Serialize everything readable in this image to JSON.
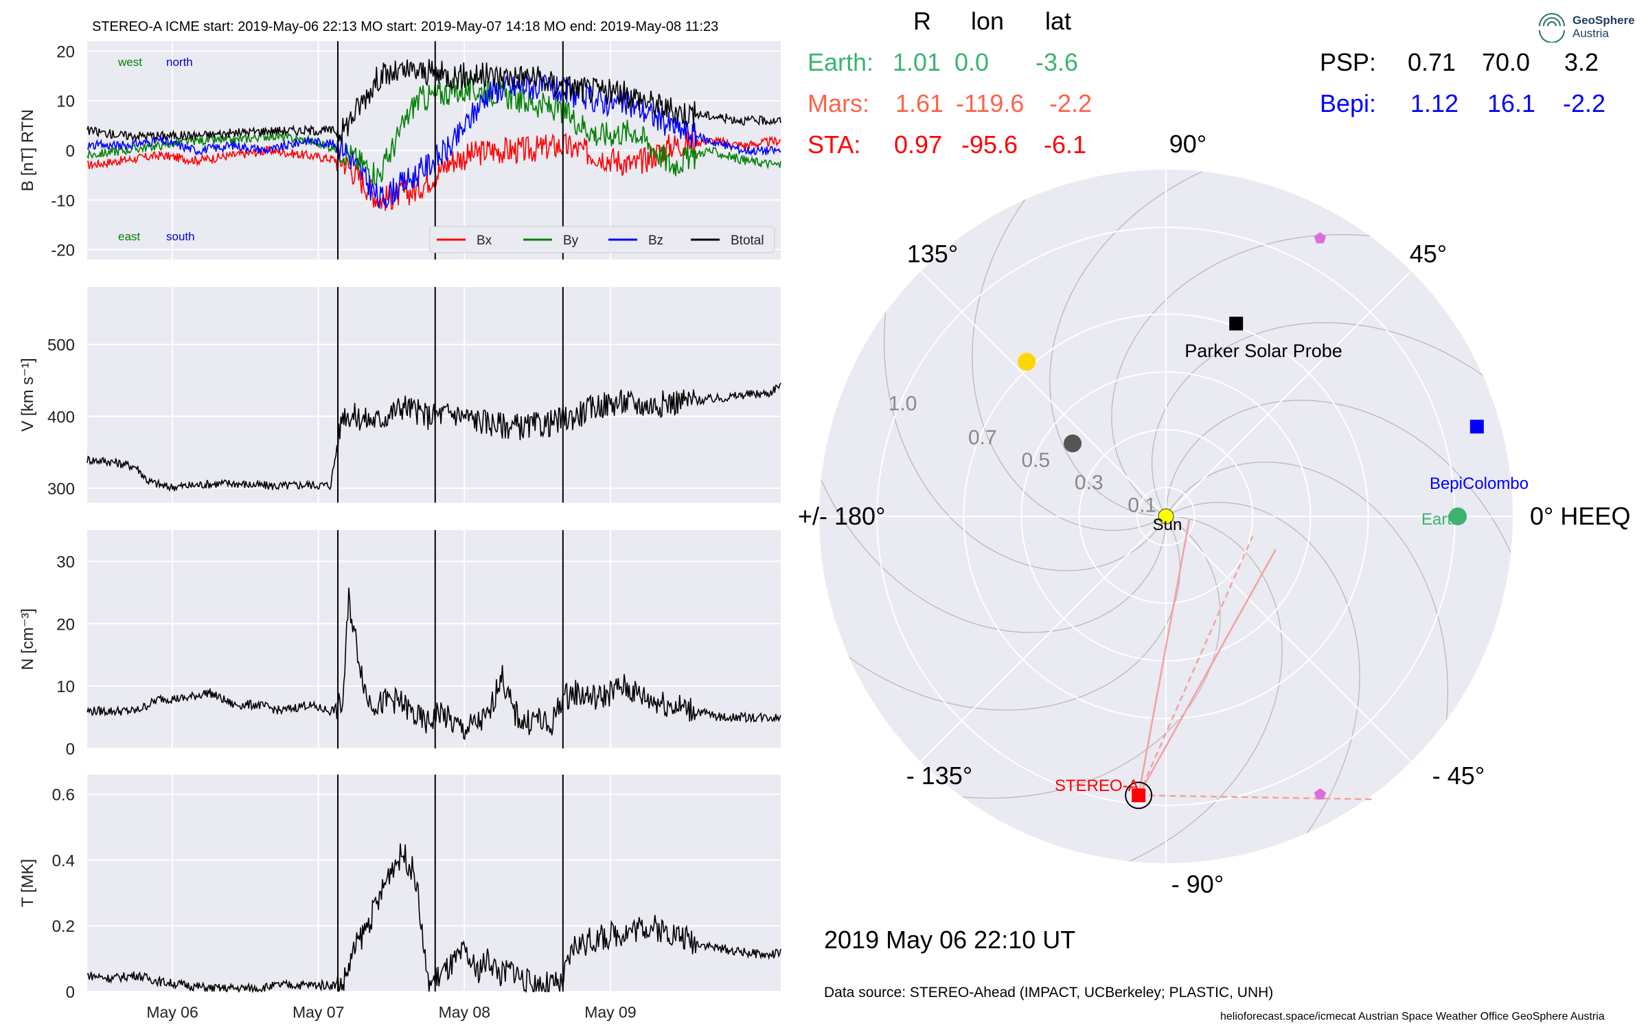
{
  "header": {
    "banner": "STEREO-A    ICME start: 2019-May-06 22:13   MO start: 2019-May-07 14:18   MO end: 2019-May-08 11:23"
  },
  "logo": {
    "line1": "GeoSphere",
    "line2": "Austria"
  },
  "positions": {
    "columns": [
      "R",
      "lon",
      "lat"
    ],
    "rows": [
      {
        "name": "Earth:",
        "r": "1.01",
        "lon": "0.0",
        "lat": "-3.6",
        "color": "#3cb371"
      },
      {
        "name": "Mars:",
        "r": "1.61",
        "lon": "-119.6",
        "lat": "-2.2",
        "color": "#ff6347"
      },
      {
        "name": "STA:",
        "r": "0.97",
        "lon": "-95.6",
        "lat": "-6.1",
        "color": "#ff0000"
      },
      {
        "name": "PSP:",
        "r": "0.71",
        "lon": "70.0",
        "lat": "3.2",
        "color": "#000000"
      },
      {
        "name": "Bepi:",
        "r": "1.12",
        "lon": "16.1",
        "lat": "-2.2",
        "color": "#0000ff"
      }
    ]
  },
  "footer": {
    "date": "2019 May 06  22:10 UT",
    "source": "Data source: STEREO-Ahead (IMPACT, UCBerkeley; PLASTIC, UNH)",
    "credits": "helioforecast.space/icmecat   Austrian Space Weather Office   GeoSphere Austria"
  },
  "chart_data": [
    {
      "type": "line",
      "ylabel": "B [nT] RTN",
      "ylim": [
        -22,
        22
      ],
      "yticks": [
        -20,
        -10,
        0,
        10,
        20
      ],
      "corner_labels": {
        "west": "west",
        "north": "north",
        "east": "east",
        "south": "south"
      },
      "legend": {
        "placement": "bottom-right",
        "entries": [
          "Bx",
          "By",
          "Bz",
          "Btotal"
        ]
      },
      "series": [
        {
          "name": "Bx",
          "color": "#ff0000",
          "x": [
            0,
            6,
            12,
            18,
            24,
            30,
            36,
            42,
            48,
            54,
            60,
            66,
            72,
            78,
            84,
            90,
            96,
            102,
            108,
            114
          ],
          "y": [
            -3,
            -2,
            -1,
            -2,
            -1,
            0,
            -1,
            -2,
            -10,
            -8,
            -2,
            0,
            0,
            1,
            -1,
            -3,
            1,
            2,
            1,
            2
          ]
        },
        {
          "name": "By",
          "color": "#008000",
          "x": [
            0,
            6,
            12,
            18,
            24,
            30,
            36,
            42,
            48,
            54,
            60,
            66,
            72,
            78,
            84,
            90,
            96,
            102,
            108,
            114
          ],
          "y": [
            -1,
            0,
            1,
            2,
            2,
            3,
            2,
            0,
            -5,
            10,
            12,
            12,
            10,
            8,
            3,
            4,
            -3,
            0,
            -2,
            -3
          ]
        },
        {
          "name": "Bz",
          "color": "#0000ff",
          "x": [
            0,
            6,
            12,
            18,
            24,
            30,
            36,
            42,
            48,
            54,
            60,
            66,
            72,
            78,
            84,
            90,
            96,
            102,
            108,
            114
          ],
          "y": [
            1,
            1,
            2,
            0,
            1,
            0,
            2,
            1,
            -10,
            -5,
            1,
            12,
            13,
            12,
            10,
            9,
            5,
            2,
            0,
            0
          ]
        },
        {
          "name": "Btotal",
          "color": "#000000",
          "x": [
            0,
            6,
            12,
            18,
            24,
            30,
            36,
            42,
            48,
            54,
            60,
            66,
            72,
            78,
            84,
            90,
            96,
            102,
            108,
            114
          ],
          "y": [
            4,
            3,
            3,
            3,
            3.5,
            4,
            4,
            4,
            15,
            16,
            15,
            15,
            15,
            13,
            12,
            11,
            8,
            7,
            6,
            6
          ]
        }
      ],
      "xlim": [
        0,
        114
      ]
    },
    {
      "type": "line",
      "ylabel": "V [km s⁻¹]",
      "ylim": [
        280,
        580
      ],
      "yticks": [
        300,
        400,
        500
      ],
      "series": [
        {
          "name": "",
          "color": "#000000",
          "x": [
            0,
            4,
            8,
            10,
            13,
            16,
            20,
            24,
            28,
            32,
            36,
            40,
            42,
            44,
            46,
            48,
            52,
            56,
            60,
            64,
            68,
            72,
            76,
            80,
            84,
            88,
            92,
            96,
            100,
            104,
            108,
            112,
            114
          ],
          "y": [
            340,
            337,
            330,
            310,
            302,
            303,
            306,
            307,
            304,
            303,
            305,
            304,
            405,
            400,
            395,
            395,
            415,
            400,
            405,
            395,
            388,
            385,
            390,
            400,
            415,
            420,
            415,
            420,
            422,
            425,
            430,
            432,
            445
          ]
        }
      ],
      "xlim": [
        0,
        114
      ]
    },
    {
      "type": "line",
      "ylabel": "N [cm⁻³]",
      "ylim": [
        0,
        35
      ],
      "yticks": [
        0,
        10,
        20,
        30
      ],
      "series": [
        {
          "name": "",
          "color": "#000000",
          "x": [
            0,
            4,
            8,
            12,
            16,
            20,
            24,
            28,
            32,
            36,
            40,
            42,
            43,
            44,
            46,
            48,
            50,
            52,
            54,
            56,
            58,
            60,
            62,
            64,
            66,
            68,
            70,
            72,
            74,
            76,
            78,
            80,
            84,
            88,
            92,
            96,
            100,
            104,
            108,
            112,
            114
          ],
          "y": [
            6,
            6,
            6,
            8,
            8,
            9,
            7,
            7,
            6,
            7,
            6,
            7,
            24,
            18,
            8,
            7,
            8,
            7,
            5,
            4,
            6,
            4,
            3,
            4,
            5,
            12,
            6,
            4,
            5,
            3,
            8,
            9,
            8,
            10,
            8,
            7,
            6,
            5,
            5,
            5,
            5
          ]
        }
      ],
      "xlim": [
        0,
        114
      ]
    },
    {
      "type": "line",
      "ylabel": "T [MK]",
      "ylim": [
        0,
        0.66
      ],
      "yticks": [
        0.0,
        0.2,
        0.4,
        0.6
      ],
      "x_ticks": {
        "labels": [
          "May 06",
          "May 07",
          "May 08",
          "May 09"
        ],
        "values": [
          14,
          38,
          62,
          86
        ]
      },
      "series": [
        {
          "name": "",
          "color": "#000000",
          "x": [
            0,
            4,
            8,
            12,
            16,
            20,
            24,
            28,
            32,
            36,
            40,
            42,
            44,
            46,
            48,
            50,
            52,
            54,
            56,
            58,
            60,
            62,
            64,
            66,
            68,
            70,
            72,
            74,
            76,
            78,
            80,
            84,
            88,
            92,
            96,
            100,
            104,
            108,
            112,
            114
          ],
          "y": [
            0.05,
            0.04,
            0.05,
            0.03,
            0.02,
            0.01,
            0.01,
            0.01,
            0.02,
            0.02,
            0.02,
            0.02,
            0.13,
            0.2,
            0.28,
            0.38,
            0.42,
            0.35,
            0.02,
            0.05,
            0.08,
            0.12,
            0.06,
            0.1,
            0.05,
            0.07,
            0.03,
            0.02,
            0.02,
            0.02,
            0.14,
            0.16,
            0.18,
            0.2,
            0.18,
            0.15,
            0.13,
            0.12,
            0.11,
            0.12
          ]
        }
      ],
      "xlim": [
        0,
        114
      ]
    },
    {
      "type": "scatter",
      "subtype": "polar",
      "r_ticks": [
        "0.1",
        "0.3",
        "0.5",
        "0.7",
        "1.0"
      ],
      "r_values": [
        0.1,
        0.3,
        0.5,
        0.7,
        1.0
      ],
      "rmax": 1.2,
      "angle_labels": [
        "0° HEEQ",
        "45°",
        "90°",
        "135°",
        "+/- 180°",
        "- 135°",
        "- 90°",
        "- 45°"
      ],
      "bodies": [
        {
          "name": "Sun",
          "r": 0,
          "lon": 0,
          "color": "#ffff00",
          "shape": "circle"
        },
        {
          "name": "Earth",
          "r": 1.01,
          "lon": 0.0,
          "color": "#3cb371",
          "shape": "circle"
        },
        {
          "name": "BepiColombo",
          "r": 1.12,
          "lon": 16.1,
          "color": "#0000ff",
          "shape": "square"
        },
        {
          "name": "Parker Solar Probe",
          "r": 0.71,
          "lon": 70.0,
          "color": "#000000",
          "shape": "square"
        },
        {
          "name": "STEREO-A",
          "r": 0.97,
          "lon": -95.6,
          "color": "#ff0000",
          "shape": "square"
        },
        {
          "name": "",
          "r": 0.72,
          "lon": 132,
          "color": "#ffd700",
          "shape": "circle"
        },
        {
          "name": "",
          "r": 0.41,
          "lon": 142,
          "color": "#555555",
          "shape": "circle"
        },
        {
          "name": "",
          "r": 1.1,
          "lon": 61,
          "color": "#da70d6",
          "shape": "pentagon"
        },
        {
          "name": "",
          "r": 1.1,
          "lon": -61,
          "color": "#da70d6",
          "shape": "pentagon"
        }
      ]
    }
  ]
}
